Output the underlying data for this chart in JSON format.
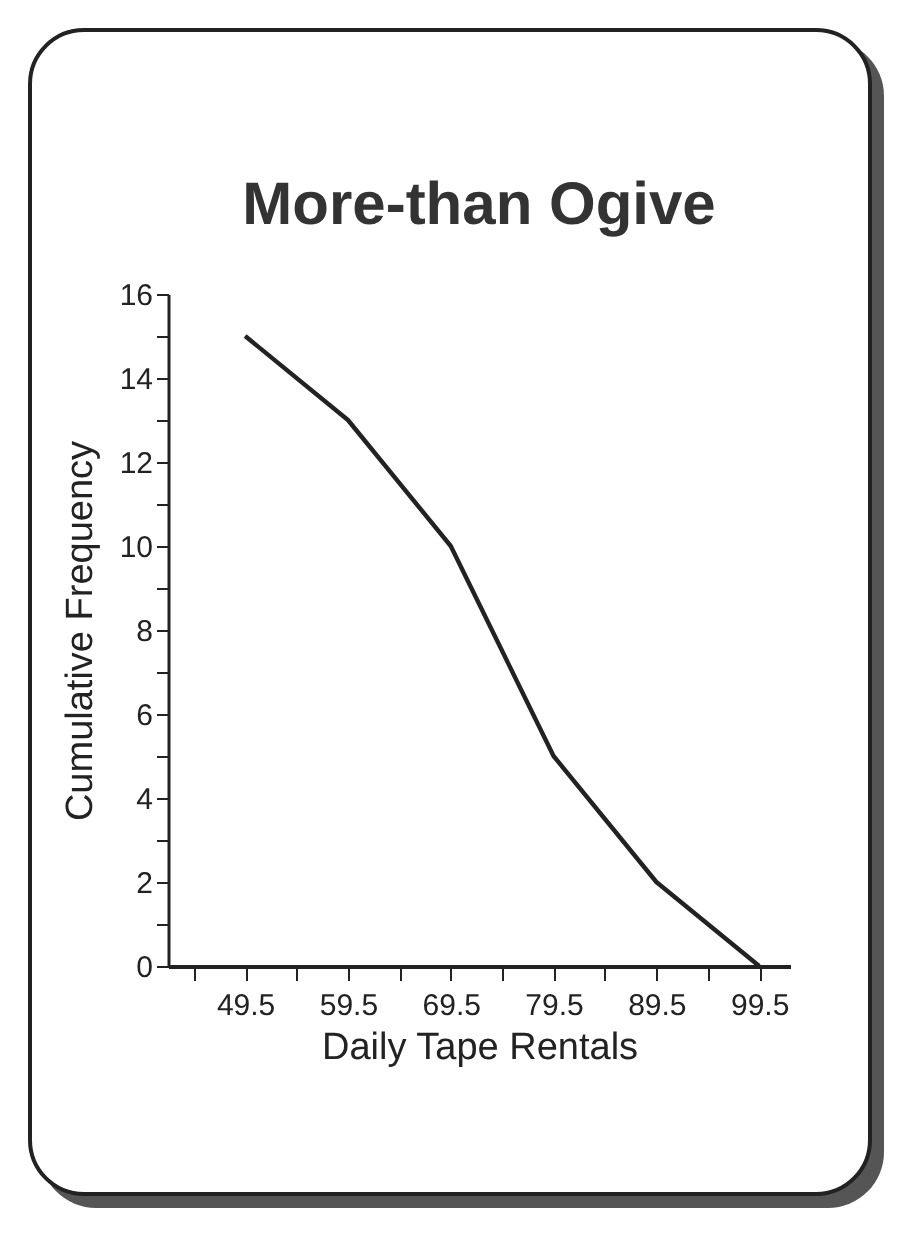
{
  "chart_data": {
    "type": "line",
    "title": "More-than Ogive",
    "xlabel": "Daily Tape Rentals",
    "ylabel": "Cumulative Frequency",
    "x": [
      49.5,
      59.5,
      69.5,
      79.5,
      89.5,
      99.5
    ],
    "series": [
      {
        "color": "#222222",
        "values": [
          15,
          13,
          10,
          5,
          2,
          0
        ]
      }
    ],
    "xlim": [
      42,
      102.5
    ],
    "xticks": [
      {
        "value": 44.5,
        "label": null
      },
      49.5,
      {
        "value": 54.5,
        "label": null
      },
      59.5,
      {
        "value": 64.5,
        "label": null
      },
      69.5,
      {
        "value": 74.5,
        "label": null
      },
      79.5,
      {
        "value": 84.5,
        "label": null
      },
      89.5,
      {
        "value": 94.5,
        "label": null
      },
      99.5
    ],
    "ylim": [
      0,
      16
    ],
    "yticks": [
      0,
      {
        "value": 1,
        "label": null
      },
      2,
      {
        "value": 3,
        "label": null
      },
      4,
      {
        "value": 5,
        "label": null
      },
      6,
      {
        "value": 7,
        "label": null
      },
      8,
      {
        "value": 9,
        "label": null
      },
      10,
      {
        "value": 11,
        "label": null
      },
      12,
      {
        "value": 13,
        "label": null
      },
      14,
      {
        "value": 15,
        "label": null
      },
      16
    ],
    "grid": false,
    "marker": "none",
    "line_style": "solid"
  }
}
